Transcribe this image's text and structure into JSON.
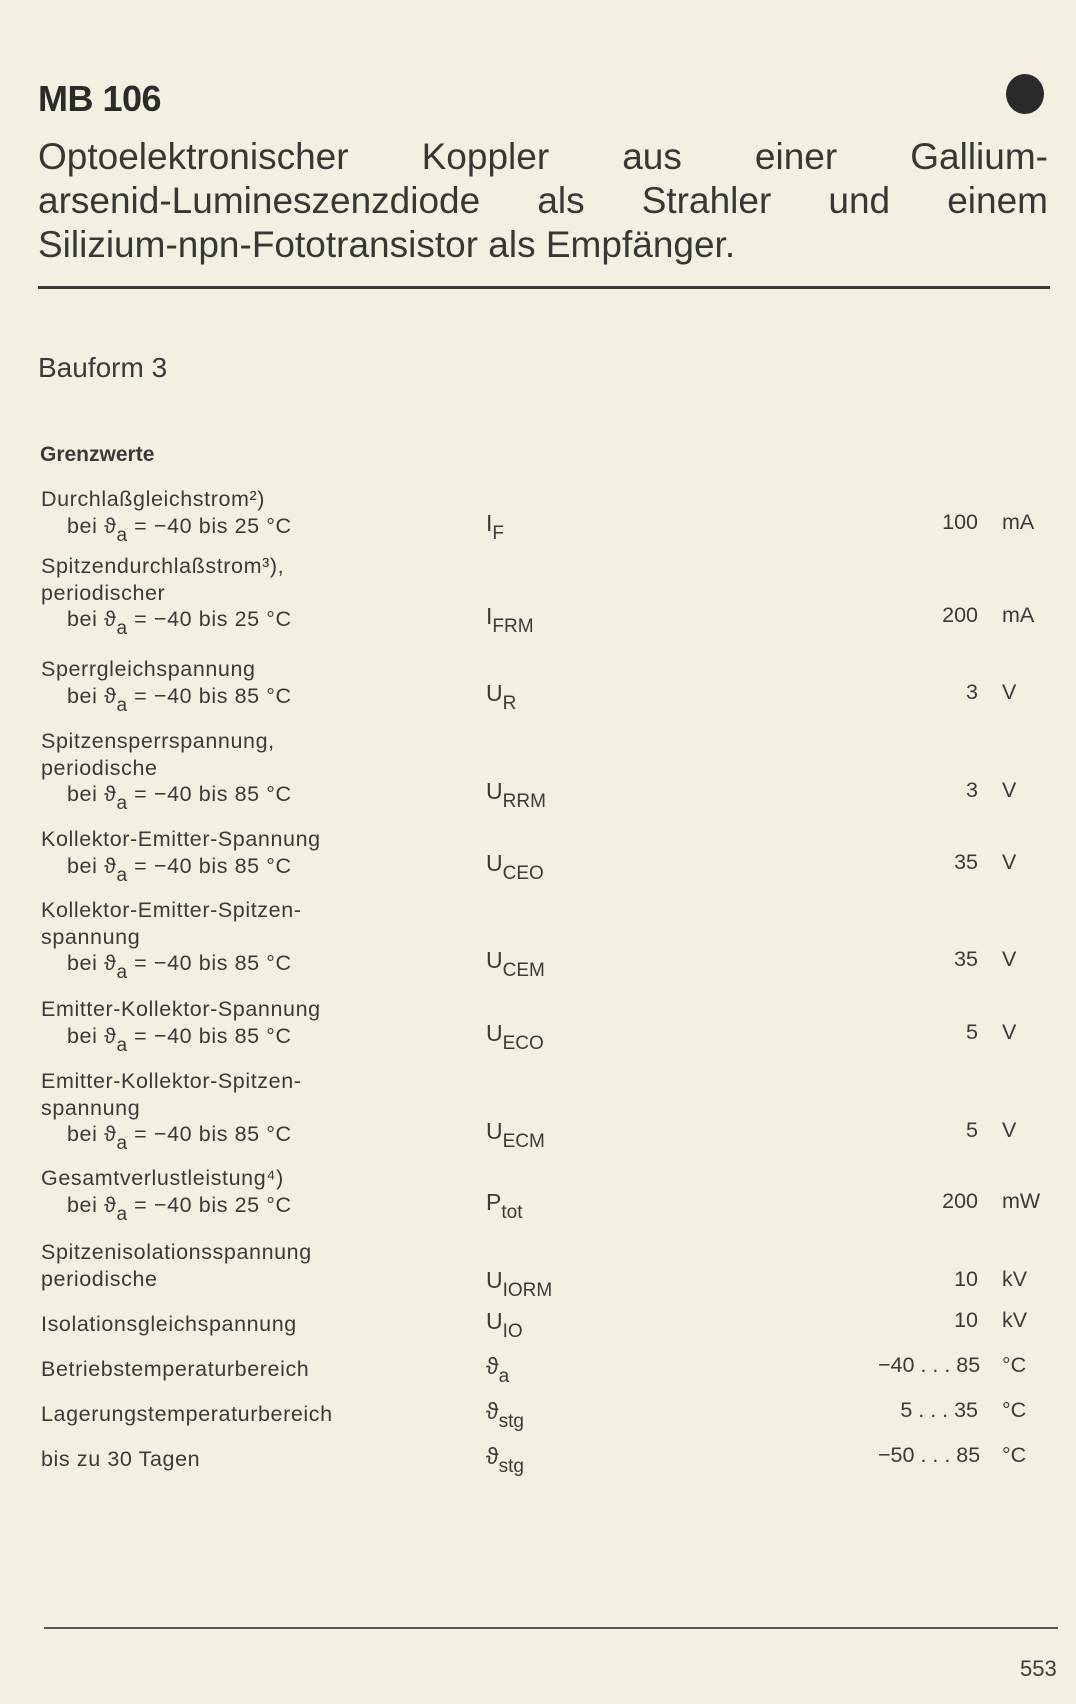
{
  "header": {
    "title": "MB 106",
    "marker_icon": "filled-circle"
  },
  "description": [
    "Optoelektronischer Koppler aus einer Gallium-",
    "arsenid-Lumineszenzdiode als Strahler und einem",
    "Silizium-npn-Fototransistor als Empfänger."
  ],
  "bauform": "Bauform 3",
  "section_title": "Grenzwerte",
  "rows": [
    {
      "label": [
        "Durchlaßgleichstrom²)"
      ],
      "cond": {
        "pre": "bei ϑ",
        "sub": "a",
        "post": " = −40 bis 25 °C"
      },
      "sym": "I",
      "sym_sub": "F",
      "value": "100",
      "unit": "mA"
    },
    {
      "label": [
        "Spitzendurchlaßstrom³),",
        "periodischer"
      ],
      "cond": {
        "pre": "bei ϑ",
        "sub": "a",
        "post": " = −40 bis 25 °C"
      },
      "sym": "I",
      "sym_sub": "FRM",
      "value": "200",
      "unit": "mA"
    },
    {
      "label": [
        "Sperrgleichspannung"
      ],
      "cond": {
        "pre": "bei ϑ",
        "sub": "a",
        "post": " = −40 bis 85 °C"
      },
      "sym": "U",
      "sym_sub": "R",
      "value": "3",
      "unit": "V"
    },
    {
      "label": [
        "Spitzensperrspannung,",
        "periodische"
      ],
      "cond": {
        "pre": "bei ϑ",
        "sub": "a",
        "post": " = −40 bis 85 °C"
      },
      "sym": "U",
      "sym_sub": "RRM",
      "value": "3",
      "unit": "V"
    },
    {
      "label": [
        "Kollektor-Emitter-Spannung"
      ],
      "cond": {
        "pre": "bei ϑ",
        "sub": "a",
        "post": " = −40 bis 85 °C"
      },
      "sym": "U",
      "sym_sub": "CEO",
      "value": "35",
      "unit": "V"
    },
    {
      "label": [
        "Kollektor-Emitter-Spitzen-",
        "spannung"
      ],
      "cond": {
        "pre": "bei ϑ",
        "sub": "a",
        "post": " = −40 bis 85 °C"
      },
      "sym": "U",
      "sym_sub": "CEM",
      "value": "35",
      "unit": "V"
    },
    {
      "label": [
        "Emitter-Kollektor-Spannung"
      ],
      "cond": {
        "pre": "bei ϑ",
        "sub": "a",
        "post": " = −40 bis 85 °C"
      },
      "sym": "U",
      "sym_sub": "ECO",
      "value": "5",
      "unit": "V"
    },
    {
      "label": [
        "Emitter-Kollektor-Spitzen-",
        "spannung"
      ],
      "cond": {
        "pre": "bei ϑ",
        "sub": "a",
        "post": " = −40 bis 85 °C"
      },
      "sym": "U",
      "sym_sub": "ECM",
      "value": "5",
      "unit": "V"
    },
    {
      "label": [
        "Gesamtverlustleistung⁴)"
      ],
      "cond": {
        "pre": "bei ϑ",
        "sub": "a",
        "post": " = −40 bis 25 °C"
      },
      "sym": "P",
      "sym_sub": "tot",
      "value": "200",
      "unit": "mW"
    },
    {
      "label": [
        "Spitzenisolationsspannung",
        "periodische"
      ],
      "sym": "U",
      "sym_sub": "IORM",
      "value": "10",
      "unit": "kV"
    },
    {
      "label": [
        "Isolationsgleichspannung"
      ],
      "sym": "U",
      "sym_sub": "IO",
      "value": "10",
      "unit": "kV"
    },
    {
      "label": [
        "Betriebstemperaturbereich"
      ],
      "sym": "ϑ",
      "sym_sub": "a",
      "value": "−40 . . . 85",
      "unit": "°C"
    },
    {
      "label": [
        "Lagerungstemperaturbereich"
      ],
      "sym": "ϑ",
      "sym_sub": "stg",
      "value": "5 . . . 35",
      "unit": "°C"
    },
    {
      "label": [
        "bis zu 30 Tagen"
      ],
      "sym": "ϑ",
      "sym_sub": "stg",
      "value": "−50 . . . 85",
      "unit": "°C"
    }
  ],
  "footer": {
    "page_number": "553"
  }
}
